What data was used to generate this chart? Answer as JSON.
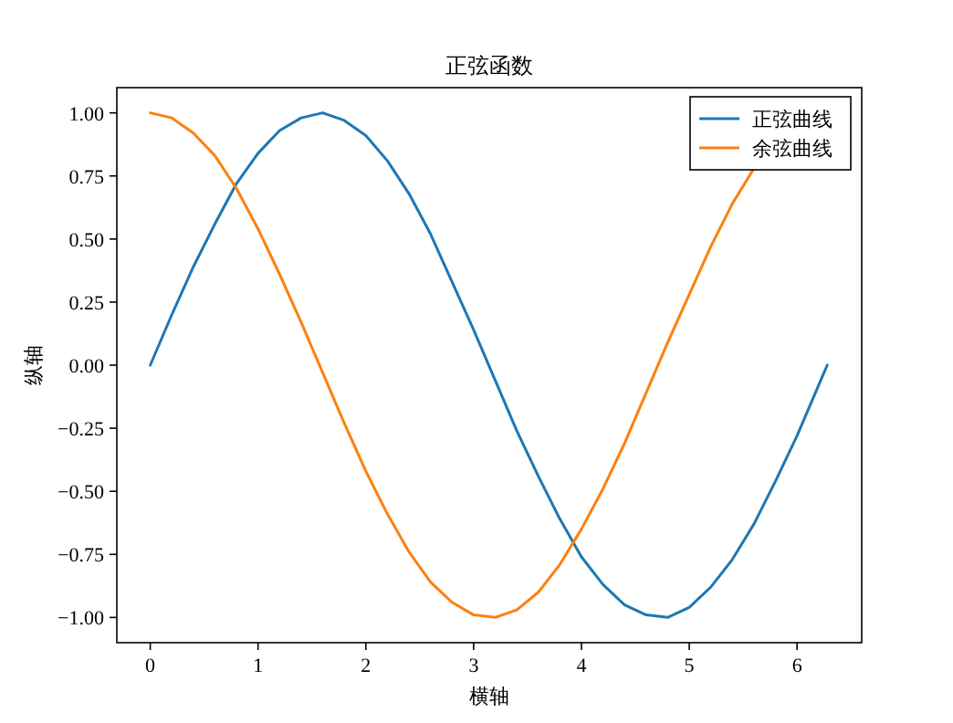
{
  "chart_data": {
    "type": "line",
    "title": "正弦函数",
    "xlabel": "横轴",
    "ylabel": "纵轴",
    "legend": "top right",
    "xlim": [
      -0.31,
      6.6
    ],
    "ylim": [
      -1.1,
      1.1
    ],
    "xticks": [
      0,
      1,
      2,
      3,
      4,
      5,
      6
    ],
    "yticks": [
      {
        "value": -1,
        "label": "−1.00"
      },
      {
        "value": -0.75,
        "label": "−0.75"
      },
      {
        "value": -0.5,
        "label": "−0.50"
      },
      {
        "value": -0.25,
        "label": "−0.25"
      },
      {
        "value": 0,
        "label": "0.00"
      },
      {
        "value": 0.25,
        "label": "0.25"
      },
      {
        "value": 0.5,
        "label": "0.50"
      },
      {
        "value": 0.75,
        "label": "0.75"
      },
      {
        "value": 1,
        "label": "1.00"
      }
    ],
    "x": [
      0,
      0.2,
      0.4,
      0.6,
      0.8,
      1.0,
      1.2,
      1.4,
      1.6,
      1.8,
      2.0,
      2.2,
      2.4,
      2.6,
      2.8,
      3.0,
      3.2,
      3.4,
      3.6,
      3.8,
      4.0,
      4.2,
      4.4,
      4.6,
      4.8,
      5.0,
      5.2,
      5.4,
      5.6,
      5.8,
      6.0,
      6.2,
      6.28
    ],
    "series": [
      {
        "name": "正弦曲线",
        "color": "#1f77b4",
        "values": [
          0,
          0.2,
          0.39,
          0.56,
          0.72,
          0.84,
          0.93,
          0.98,
          1.0,
          0.97,
          0.91,
          0.81,
          0.68,
          0.52,
          0.33,
          0.14,
          -0.06,
          -0.26,
          -0.44,
          -0.61,
          -0.76,
          -0.87,
          -0.95,
          -0.99,
          -1.0,
          -0.96,
          -0.88,
          -0.77,
          -0.63,
          -0.46,
          -0.28,
          -0.08,
          0
        ]
      },
      {
        "name": "余弦曲线",
        "color": "#ff7f0e",
        "values": [
          1,
          0.98,
          0.92,
          0.83,
          0.7,
          0.54,
          0.36,
          0.17,
          -0.03,
          -0.23,
          -0.42,
          -0.59,
          -0.74,
          -0.86,
          -0.94,
          -0.99,
          -1.0,
          -0.97,
          -0.9,
          -0.79,
          -0.65,
          -0.49,
          -0.31,
          -0.11,
          0.09,
          0.28,
          0.47,
          0.64,
          0.78,
          null,
          null,
          null,
          null
        ]
      }
    ]
  }
}
